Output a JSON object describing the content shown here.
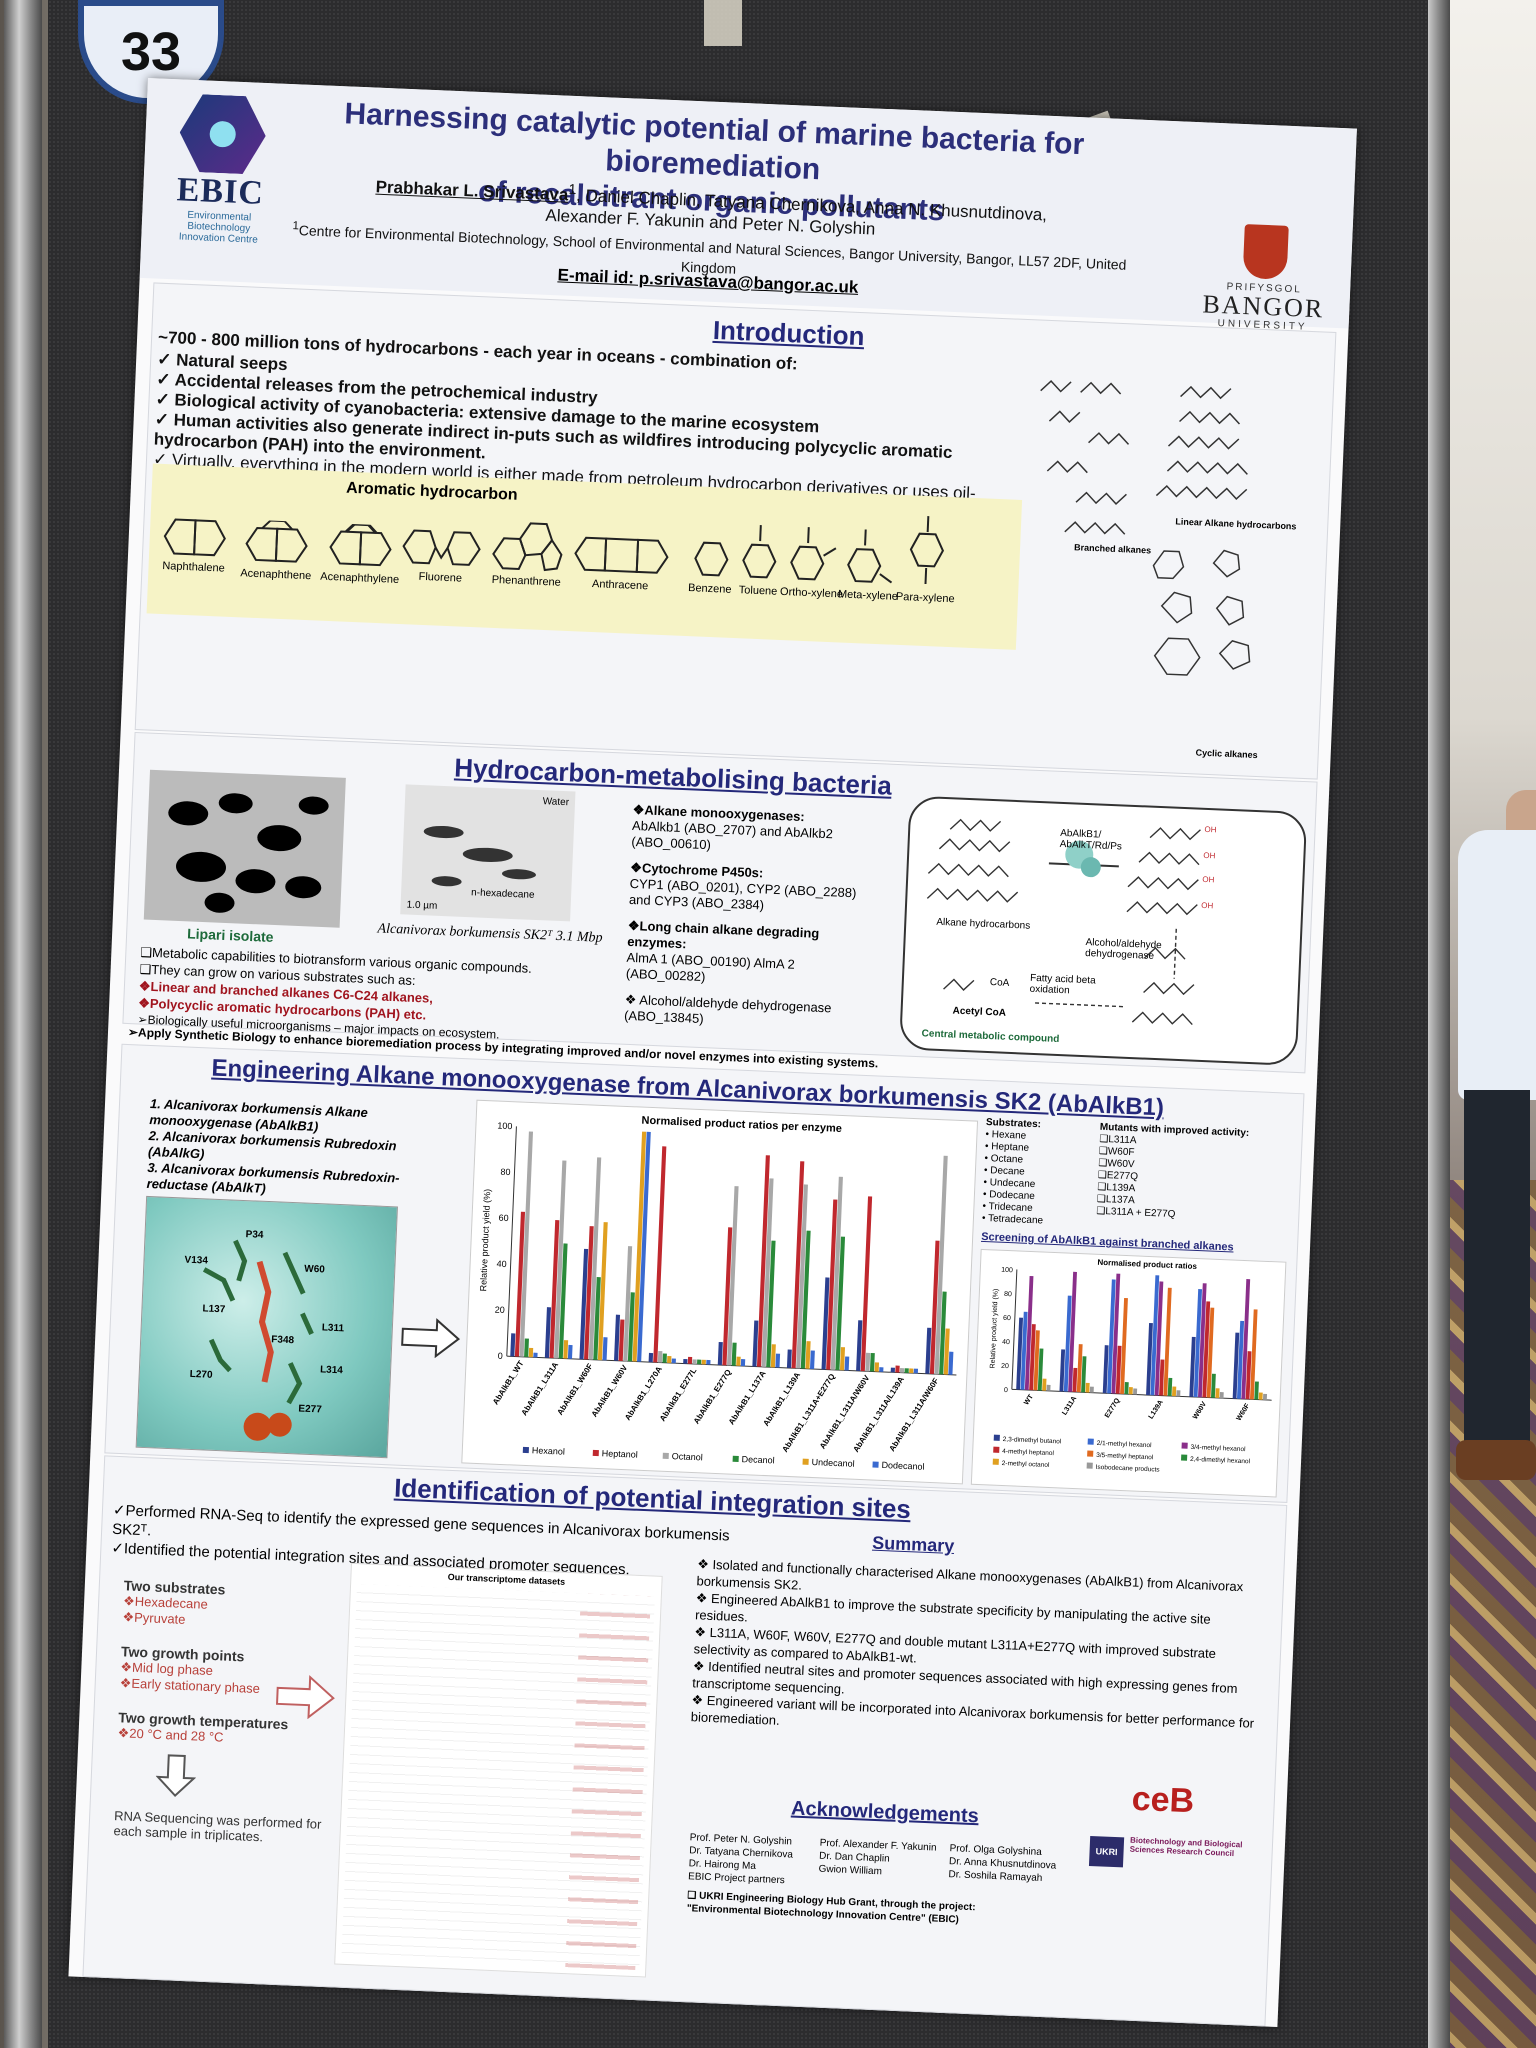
{
  "board_number": "33",
  "header": {
    "ebic_name": "EBIC",
    "ebic_sub": [
      "Environmental",
      "Biotechnology",
      "Innovation Centre"
    ],
    "title_line1": "Harnessing catalytic potential of marine bacteria for bioremediation",
    "title_line2": "of recalcitrant organic pollutants",
    "author_main": "Prabhakar L. Srivastava",
    "authors_line1_rest": ", Daniel Chaplin, Tatyana Chernikova, Anna N. Khusnutdinova,",
    "authors_line2": "Alexander F. Yakunin and Peter N. Golyshin",
    "affiliation": "Centre for Environmental Biotechnology, School of Environmental and Natural Sciences, Bangor University, Bangor, LL57 2DF, United Kingdom",
    "email": "E-mail id: p.srivastava@bangor.ac.uk",
    "bangor_top": "PRIFYSGOL",
    "bangor_mid": "BANGOR",
    "bangor_bot": "UNIVERSITY"
  },
  "intro": {
    "title": "Introduction",
    "lead": "~700 - 800 million tons of hydrocarbons - each year in oceans - combination of:",
    "points": [
      "Natural seeps",
      "Accidental releases from the petrochemical industry",
      "Biological activity of cyanobacteria: extensive damage to the marine ecosystem",
      "Human activities also generate indirect in-puts such as wildfires introducing polycyclic aromatic hydrocarbon (PAH) into the environment."
    ],
    "last_point": "Virtually, everything in the modern world is either made from petroleum hydrocarbon derivatives or uses oil-based energy to transport them.",
    "aromatic_title": "Aromatic hydrocarbon",
    "molecules": [
      "Naphthalene",
      "Acenaphthene",
      "Acenaphthylene",
      "Fluorene",
      "Phenanthrene",
      "Anthracene",
      "Benzene",
      "Toluene",
      "Ortho-xylene",
      "Meta-xylene",
      "Para-xylene"
    ],
    "branched_label": "Branched alkanes",
    "linear_label": "Linear Alkane hydrocarbons",
    "cyclic_label": "Cyclic alkanes"
  },
  "bacteria": {
    "title": "Hydrocarbon-metabolising bacteria",
    "lipari": "Lipari isolate",
    "alcani": "Alcanivorax borkumensis SK2ᵀ 3.1 Mbp",
    "micro_labels": [
      "Water",
      "n-hexadecane",
      "1.0 µm"
    ],
    "enzymes": [
      {
        "h": "❖Alkane monooxygenases:",
        "t": "AbAlkb1 (ABO_2707) and AbAlkb2 (ABO_00610)"
      },
      {
        "h": "❖Cytochrome P450s:",
        "t": "CYP1 (ABO_0201), CYP2 (ABO_2288) and CYP3 (ABO_2384)"
      },
      {
        "h": "❖Long chain alkane degrading enzymes:",
        "t": "AlmA 1 (ABO_00190) AlmA 2 (ABO_00282)"
      },
      {
        "h": "",
        "t": "❖ Alcohol/aldehyde dehydrogenase (ABO_13845)"
      }
    ],
    "bullets": [
      "❑Metabolic capabilities to biotransform various organic compounds.",
      "❑They can grow on various substrates such as:"
    ],
    "red_bullets": [
      "❖Linear and branched alkanes C6-C24 alkanes,",
      "❖Polycyclic aromatic hydrocarbons (PAH) etc."
    ],
    "tail_bullets": [
      "➢Biologically useful microorganisms – major impacts on ecosystem.",
      "➢Apply Synthetic Biology to enhance bioremediation process by integrating improved and/or novel enzymes into existing systems."
    ],
    "pathway": {
      "alkane": "Alkane hydrocarbons",
      "enzyme": "AbAlkB1/ AbAlkT/Rd/Ps",
      "dehyd": "Alcohol/aldehyde dehydrogenase",
      "fatty": "Fatty acid beta oxidation",
      "acetyl": "Acetyl CoA",
      "coa": "CoA",
      "central": "Central metabolic compound"
    }
  },
  "engineering": {
    "title": "Engineering Alkane monooxygenase from Alcanivorax borkumensis SK2 (AbAlkB1)",
    "list": [
      "1. Alcanivorax borkumensis Alkane monooxygenase (AbAlkB1)",
      "2. Alcanivorax borkumensis Rubredoxin (AbAlkG)",
      "3. Alcanivorax borkumensis Rubredoxin-reductase (AbAlkT)"
    ],
    "residues": [
      "P34",
      "V134",
      "W60",
      "L137",
      "L311",
      "F348",
      "L270",
      "L314",
      "E277"
    ],
    "substrates_title": "Substrates:",
    "substrates": [
      "Hexane",
      "Heptane",
      "Octane",
      "Decane",
      "Undecane",
      "Dodecane",
      "Tridecane",
      "Tetradecane"
    ],
    "mutants_title": "Mutants with improved activity:",
    "mutants": [
      "❑L311A",
      "❑W60F",
      "❑W60V",
      "❑E277Q",
      "❑L139A",
      "❑L137A",
      "❑L311A + E277Q"
    ],
    "screen_title": "Screening of AbAlkB1 against branched alkanes"
  },
  "chart_data": [
    {
      "type": "bar",
      "title": "Normalised product ratios per enzyme",
      "ylabel": "Relative product yield (%)",
      "ylim": [
        0,
        100
      ],
      "yticks": [
        0,
        20,
        40,
        60,
        80,
        100
      ],
      "categories": [
        "AbAlkB1_WT",
        "AbAlkB1_L311A",
        "AbAlkB1_W60F",
        "AbAlkB1_W60V",
        "AbAlkB1_L270A",
        "AbAlkB1_E277L",
        "AbAlkB1_E277Q",
        "AbAlkB1_L137A",
        "AbAlkB1_L139A",
        "AbAlkB1_L311A+E277Q",
        "AbAlkB1_L311A/W60V",
        "AbAlkB1_L311A/L139A",
        "AbAlkB1_L311A/W60F"
      ],
      "series": [
        {
          "name": "Hexanol",
          "color": "#2b3f8f",
          "values": [
            10,
            22,
            48,
            20,
            4,
            2,
            10,
            20,
            8,
            40,
            22,
            2,
            20
          ]
        },
        {
          "name": "Heptanol",
          "color": "#c0282e",
          "values": [
            63,
            60,
            58,
            18,
            94,
            3,
            60,
            92,
            90,
            74,
            76,
            3,
            58
          ]
        },
        {
          "name": "Octanol",
          "color": "#a8a8a8",
          "values": [
            98,
            86,
            88,
            50,
            5,
            2,
            78,
            82,
            80,
            84,
            8,
            2,
            95
          ]
        },
        {
          "name": "Decanol",
          "color": "#2a8a3a",
          "values": [
            8,
            50,
            36,
            30,
            4,
            2,
            10,
            55,
            60,
            58,
            8,
            2,
            36
          ]
        },
        {
          "name": "Undecanol",
          "color": "#e0a020",
          "values": [
            4,
            8,
            60,
            100,
            3,
            2,
            4,
            10,
            12,
            10,
            4,
            2,
            20
          ]
        },
        {
          "name": "Dodecanol",
          "color": "#3a6ad0",
          "values": [
            2,
            6,
            10,
            100,
            2,
            2,
            3,
            6,
            8,
            6,
            2,
            2,
            10
          ]
        }
      ]
    },
    {
      "type": "bar",
      "title": "Normalised product ratios",
      "ylabel": "Relative product yield (%)",
      "ylim": [
        0,
        100
      ],
      "yticks": [
        0,
        20,
        40,
        60,
        80,
        100
      ],
      "categories": [
        "WT",
        "L311A",
        "E277Q",
        "L139A",
        "W60V",
        "W60F"
      ],
      "series": [
        {
          "name": "2,3-dimethyl butanol",
          "color": "#2b3f8f",
          "values": [
            60,
            35,
            40,
            60,
            50,
            55
          ]
        },
        {
          "name": "2/1-methyl hexanol",
          "color": "#3a6ad0",
          "values": [
            65,
            80,
            95,
            100,
            90,
            65
          ]
        },
        {
          "name": "3/4-methyl hexanol",
          "color": "#8a2f8a",
          "values": [
            95,
            100,
            100,
            95,
            95,
            100
          ]
        },
        {
          "name": "4-methyl heptanol",
          "color": "#c0282e",
          "values": [
            55,
            20,
            40,
            30,
            80,
            40
          ]
        },
        {
          "name": "3/5-methyl heptanol",
          "color": "#e06a20",
          "values": [
            50,
            40,
            80,
            90,
            75,
            75
          ]
        },
        {
          "name": "2,4-dimethyl hexanol",
          "color": "#2a8a3a",
          "values": [
            35,
            30,
            10,
            15,
            20,
            15
          ]
        },
        {
          "name": "2-methyl octanol",
          "color": "#e0a020",
          "values": [
            10,
            8,
            6,
            8,
            8,
            6
          ]
        },
        {
          "name": "Isobodecane products",
          "color": "#999999",
          "values": [
            5,
            5,
            5,
            5,
            5,
            5
          ]
        }
      ]
    }
  ],
  "integration": {
    "title": "Identification of potential integration sites",
    "subtitle": "Alcanivorax borkumensis SK2ᵀ.",
    "lines": [
      "✓Performed RNA-Seq to identify the expressed gene sequences in Alcanivorax borkumensis SK2ᵀ.",
      "✓Identified the potential integration sites and associated promoter sequences."
    ],
    "table_title": "Our transcriptome datasets",
    "two_substrates": "Two substrates",
    "substrates": [
      "❖Hexadecane",
      "❖Pyruvate"
    ],
    "two_growth": "Two growth points",
    "growth": [
      "❖Mid log phase",
      "❖Early stationary phase"
    ],
    "two_temps": "Two growth temperatures",
    "temps": [
      "❖20 °C and 28 °C"
    ],
    "rna_note": "RNA Sequencing was performed for each sample in triplicates."
  },
  "summary": {
    "title": "Summary",
    "points": [
      "❖ Isolated and functionally characterised Alkane monooxygenases (AbAlkB1) from Alcanivorax borkumensis SK2.",
      "❖ Engineered AbAlkB1 to improve the substrate specificity by manipulating the active site residues.",
      "❖ L311A, W60F, W60V, E277Q and double mutant L311A+E277Q with improved substrate selectivity as compared to AbAlkB1-wt.",
      "❖ Identified neutral sites and promoter sequences associated with high expressing genes from transcriptome sequencing.",
      "❖ Engineered variant will be incorporated into Alcanivorax borkumensis for better performance for bioremediation."
    ]
  },
  "ack": {
    "title": "Acknowledgements",
    "col1": [
      "Prof. Peter N. Golyshin",
      "Dr. Tatyana Chernikova",
      "Dr. Hairong Ma",
      "EBIC Project partners"
    ],
    "col2": [
      "Prof. Alexander F. Yakunin",
      "Dr. Dan Chaplin",
      "Gwion William"
    ],
    "col3": [
      "Prof. Olga Golyshina",
      "Dr. Anna Khusnutdinova",
      "Dr. Soshila Ramayah"
    ],
    "grant": "❑ UKRI Engineering Biology Hub Grant, through the project:",
    "grant2": "\"Environmental Biotechnology Innovation Centre\" (EBIC)",
    "ceb": "ceB",
    "ukri": "UKRI",
    "bbsrc": "Biotechnology and Biological Sciences Research Council"
  }
}
